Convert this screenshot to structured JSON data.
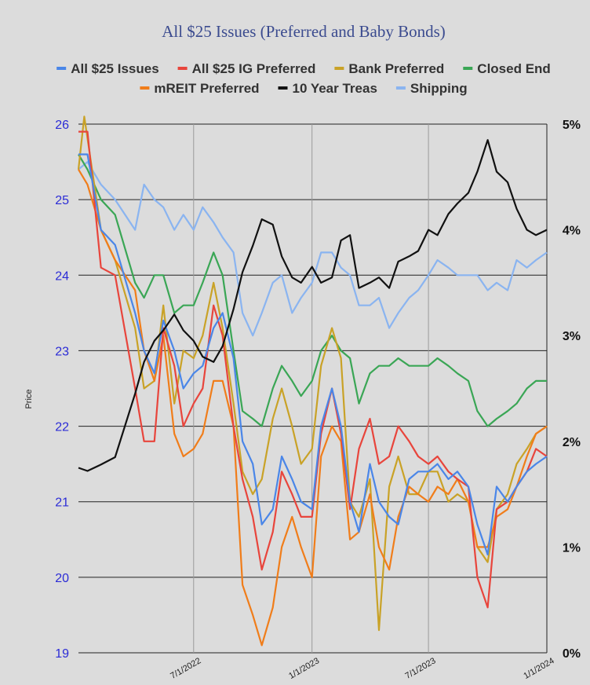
{
  "chart_data": {
    "type": "line",
    "title": "All $25 Issues (Preferred and Baby Bonds)",
    "ylabel": "Price",
    "ylim": [
      19,
      26
    ],
    "y_ticks": [
      "19",
      "20",
      "21",
      "22",
      "23",
      "24",
      "25",
      "26"
    ],
    "y2lim": [
      0,
      5
    ],
    "y2_ticks": [
      "0%",
      "1%",
      "2%",
      "3%",
      "4%",
      "5%"
    ],
    "x_ticks": [
      "7/1/2022",
      "1/1/2023",
      "7/1/2023",
      "1/1/2024"
    ],
    "xlim": [
      "2022-01-03",
      "2024-01-01"
    ],
    "grid": true,
    "legend_position": "top",
    "series": [
      {
        "name": "All $25 Issues",
        "color": "#4a86e8",
        "axis": "left",
        "x": [
          "2022-01-03",
          "2022-01-17",
          "2022-02-07",
          "2022-03-01",
          "2022-04-01",
          "2022-04-15",
          "2022-05-01",
          "2022-05-15",
          "2022-06-01",
          "2022-06-15",
          "2022-07-01",
          "2022-07-15",
          "2022-08-01",
          "2022-08-15",
          "2022-09-01",
          "2022-09-15",
          "2022-10-01",
          "2022-10-15",
          "2022-11-01",
          "2022-11-15",
          "2022-12-01",
          "2022-12-15",
          "2023-01-01",
          "2023-01-15",
          "2023-02-01",
          "2023-02-15",
          "2023-03-01",
          "2023-03-15",
          "2023-04-01",
          "2023-04-15",
          "2023-05-01",
          "2023-05-15",
          "2023-06-01",
          "2023-06-15",
          "2023-07-01",
          "2023-07-15",
          "2023-08-01",
          "2023-08-15",
          "2023-09-01",
          "2023-09-15",
          "2023-10-01",
          "2023-10-15",
          "2023-11-01",
          "2023-11-15",
          "2023-12-01",
          "2023-12-15",
          "2024-01-01"
        ],
        "values": [
          25.6,
          25.6,
          24.6,
          24.4,
          23.5,
          23.0,
          22.7,
          23.4,
          23.0,
          22.5,
          22.7,
          22.8,
          23.3,
          23.5,
          22.9,
          21.8,
          21.5,
          20.7,
          20.9,
          21.6,
          21.3,
          21.0,
          20.9,
          22.0,
          22.5,
          22.0,
          21.0,
          20.6,
          21.5,
          21.0,
          20.8,
          20.7,
          21.3,
          21.4,
          21.4,
          21.5,
          21.3,
          21.4,
          21.2,
          20.7,
          20.3,
          21.2,
          21.0,
          21.2,
          21.4,
          21.5,
          21.6
        ]
      },
      {
        "name": "All $25 IG Preferred",
        "color": "#e8453c",
        "axis": "left",
        "x": [
          "2022-01-03",
          "2022-01-17",
          "2022-02-07",
          "2022-03-01",
          "2022-04-01",
          "2022-04-15",
          "2022-05-01",
          "2022-05-15",
          "2022-06-01",
          "2022-06-15",
          "2022-07-01",
          "2022-07-15",
          "2022-08-01",
          "2022-08-15",
          "2022-09-01",
          "2022-09-15",
          "2022-10-01",
          "2022-10-15",
          "2022-11-01",
          "2022-11-15",
          "2022-12-01",
          "2022-12-15",
          "2023-01-01",
          "2023-01-15",
          "2023-02-01",
          "2023-02-15",
          "2023-03-01",
          "2023-03-15",
          "2023-04-01",
          "2023-04-15",
          "2023-05-01",
          "2023-05-15",
          "2023-06-01",
          "2023-06-15",
          "2023-07-01",
          "2023-07-15",
          "2023-08-01",
          "2023-08-15",
          "2023-09-01",
          "2023-09-15",
          "2023-10-01",
          "2023-10-15",
          "2023-11-01",
          "2023-11-15",
          "2023-12-01",
          "2023-12-15",
          "2024-01-01"
        ],
        "values": [
          25.9,
          25.9,
          24.1,
          24.0,
          22.5,
          21.8,
          21.8,
          23.3,
          22.8,
          22.0,
          22.3,
          22.5,
          23.6,
          23.2,
          22.0,
          21.3,
          20.8,
          20.1,
          20.6,
          21.4,
          21.1,
          20.8,
          20.8,
          21.9,
          22.5,
          21.9,
          20.9,
          21.7,
          22.1,
          21.5,
          21.6,
          22.0,
          21.8,
          21.6,
          21.5,
          21.6,
          21.4,
          21.3,
          21.2,
          20.0,
          19.6,
          20.9,
          21.0,
          21.2,
          21.4,
          21.7,
          21.6
        ]
      },
      {
        "name": "Bank Preferred",
        "color": "#c9a227",
        "axis": "left",
        "x": [
          "2022-01-03",
          "2022-01-12",
          "2022-02-07",
          "2022-03-01",
          "2022-04-01",
          "2022-04-15",
          "2022-05-01",
          "2022-05-15",
          "2022-06-01",
          "2022-06-15",
          "2022-07-01",
          "2022-07-15",
          "2022-08-01",
          "2022-08-15",
          "2022-09-01",
          "2022-09-15",
          "2022-10-01",
          "2022-10-15",
          "2022-11-01",
          "2022-11-15",
          "2022-12-01",
          "2022-12-15",
          "2023-01-01",
          "2023-01-15",
          "2023-02-01",
          "2023-02-15",
          "2023-03-01",
          "2023-03-15",
          "2023-04-01",
          "2023-04-15",
          "2023-05-01",
          "2023-05-15",
          "2023-06-01",
          "2023-06-15",
          "2023-07-01",
          "2023-07-15",
          "2023-08-01",
          "2023-08-15",
          "2023-09-01",
          "2023-09-15",
          "2023-10-01",
          "2023-10-15",
          "2023-11-01",
          "2023-11-15",
          "2023-12-01",
          "2023-12-15",
          "2024-01-01"
        ],
        "values": [
          25.4,
          26.1,
          24.6,
          24.2,
          23.3,
          22.5,
          22.6,
          23.6,
          22.3,
          23.0,
          22.9,
          23.2,
          23.9,
          23.3,
          22.3,
          21.4,
          21.1,
          21.3,
          22.1,
          22.5,
          22.0,
          21.5,
          21.7,
          22.8,
          23.3,
          22.9,
          21.0,
          20.8,
          21.3,
          19.3,
          21.2,
          21.6,
          21.1,
          21.1,
          21.4,
          21.4,
          21.0,
          21.1,
          21.0,
          20.4,
          20.2,
          20.9,
          21.1,
          21.5,
          21.7,
          21.9,
          22.0
        ]
      },
      {
        "name": "Closed End",
        "color": "#3aa655",
        "axis": "left",
        "x": [
          "2022-01-03",
          "2022-01-17",
          "2022-02-07",
          "2022-03-01",
          "2022-04-01",
          "2022-04-15",
          "2022-05-01",
          "2022-05-15",
          "2022-06-01",
          "2022-06-15",
          "2022-07-01",
          "2022-07-15",
          "2022-08-01",
          "2022-08-15",
          "2022-09-01",
          "2022-09-15",
          "2022-10-01",
          "2022-10-15",
          "2022-11-01",
          "2022-11-15",
          "2022-12-01",
          "2022-12-15",
          "2023-01-01",
          "2023-01-15",
          "2023-02-01",
          "2023-02-15",
          "2023-03-01",
          "2023-03-15",
          "2023-04-01",
          "2023-04-15",
          "2023-05-01",
          "2023-05-15",
          "2023-06-01",
          "2023-06-15",
          "2023-07-01",
          "2023-07-15",
          "2023-08-01",
          "2023-08-15",
          "2023-09-01",
          "2023-09-15",
          "2023-10-01",
          "2023-10-15",
          "2023-11-01",
          "2023-11-15",
          "2023-12-01",
          "2023-12-15",
          "2024-01-01"
        ],
        "values": [
          25.6,
          25.4,
          25.0,
          24.8,
          23.9,
          23.7,
          24.0,
          24.0,
          23.5,
          23.6,
          23.6,
          23.9,
          24.3,
          24.0,
          23.0,
          22.2,
          22.1,
          22.0,
          22.5,
          22.8,
          22.6,
          22.4,
          22.6,
          23.0,
          23.2,
          23.0,
          22.9,
          22.3,
          22.7,
          22.8,
          22.8,
          22.9,
          22.8,
          22.8,
          22.8,
          22.9,
          22.8,
          22.7,
          22.6,
          22.2,
          22.0,
          22.1,
          22.2,
          22.3,
          22.5,
          22.6,
          22.6
        ]
      },
      {
        "name": "mREIT Preferred",
        "color": "#f07d1a",
        "axis": "left",
        "x": [
          "2022-01-03",
          "2022-01-17",
          "2022-02-07",
          "2022-03-01",
          "2022-04-01",
          "2022-04-15",
          "2022-05-01",
          "2022-05-15",
          "2022-06-01",
          "2022-06-15",
          "2022-07-01",
          "2022-07-15",
          "2022-08-01",
          "2022-08-15",
          "2022-09-01",
          "2022-09-15",
          "2022-10-01",
          "2022-10-15",
          "2022-11-01",
          "2022-11-15",
          "2022-12-01",
          "2022-12-15",
          "2023-01-01",
          "2023-01-15",
          "2023-02-01",
          "2023-02-15",
          "2023-03-01",
          "2023-03-15",
          "2023-04-01",
          "2023-04-15",
          "2023-05-01",
          "2023-05-15",
          "2023-06-01",
          "2023-06-15",
          "2023-07-01",
          "2023-07-15",
          "2023-08-01",
          "2023-08-15",
          "2023-09-01",
          "2023-09-15",
          "2023-10-01",
          "2023-10-15",
          "2023-11-01",
          "2023-11-15",
          "2023-12-01",
          "2023-12-15",
          "2024-01-01"
        ],
        "values": [
          25.4,
          25.2,
          24.6,
          24.2,
          23.8,
          23.0,
          22.6,
          23.2,
          21.9,
          21.6,
          21.7,
          21.9,
          22.6,
          22.6,
          22.0,
          19.9,
          19.5,
          19.1,
          19.6,
          20.4,
          20.8,
          20.4,
          20.0,
          21.6,
          22.0,
          21.8,
          20.5,
          20.6,
          21.1,
          20.4,
          20.1,
          20.8,
          21.2,
          21.1,
          21.0,
          21.2,
          21.1,
          21.3,
          21.0,
          20.4,
          20.4,
          20.8,
          20.9,
          21.2,
          21.6,
          21.9,
          22.0
        ]
      },
      {
        "name": "10 Year Treas",
        "color": "#111111",
        "axis": "right",
        "x": [
          "2022-01-03",
          "2022-01-17",
          "2022-02-07",
          "2022-03-01",
          "2022-04-01",
          "2022-04-15",
          "2022-05-01",
          "2022-05-15",
          "2022-06-01",
          "2022-06-15",
          "2022-07-01",
          "2022-07-15",
          "2022-08-01",
          "2022-08-15",
          "2022-09-01",
          "2022-09-15",
          "2022-10-01",
          "2022-10-15",
          "2022-11-01",
          "2022-11-15",
          "2022-12-01",
          "2022-12-15",
          "2023-01-01",
          "2023-01-15",
          "2023-02-01",
          "2023-02-15",
          "2023-03-01",
          "2023-03-15",
          "2023-04-01",
          "2023-04-15",
          "2023-05-01",
          "2023-05-15",
          "2023-06-01",
          "2023-06-15",
          "2023-07-01",
          "2023-07-15",
          "2023-08-01",
          "2023-08-15",
          "2023-09-01",
          "2023-09-15",
          "2023-10-01",
          "2023-10-15",
          "2023-11-01",
          "2023-11-15",
          "2023-12-01",
          "2023-12-15",
          "2024-01-01"
        ],
        "values": [
          1.75,
          1.72,
          1.78,
          1.85,
          2.45,
          2.75,
          2.95,
          3.05,
          3.2,
          3.05,
          2.95,
          2.8,
          2.75,
          2.9,
          3.25,
          3.6,
          3.85,
          4.1,
          4.05,
          3.75,
          3.55,
          3.5,
          3.65,
          3.5,
          3.55,
          3.9,
          3.95,
          3.45,
          3.5,
          3.55,
          3.45,
          3.7,
          3.75,
          3.8,
          4.0,
          3.95,
          4.15,
          4.25,
          4.35,
          4.55,
          4.85,
          4.55,
          4.45,
          4.2,
          4.0,
          3.95,
          4.0
        ]
      },
      {
        "name": "Shipping",
        "color": "#8ab4f0",
        "axis": "left",
        "x": [
          "2022-01-03",
          "2022-01-17",
          "2022-02-07",
          "2022-03-01",
          "2022-04-01",
          "2022-04-15",
          "2022-05-01",
          "2022-05-15",
          "2022-06-01",
          "2022-06-15",
          "2022-07-01",
          "2022-07-15",
          "2022-08-01",
          "2022-08-15",
          "2022-09-01",
          "2022-09-15",
          "2022-10-01",
          "2022-10-15",
          "2022-11-01",
          "2022-11-15",
          "2022-12-01",
          "2022-12-15",
          "2023-01-01",
          "2023-01-15",
          "2023-02-01",
          "2023-02-15",
          "2023-03-01",
          "2023-03-15",
          "2023-04-01",
          "2023-04-15",
          "2023-05-01",
          "2023-05-15",
          "2023-06-01",
          "2023-06-15",
          "2023-07-01",
          "2023-07-15",
          "2023-08-01",
          "2023-08-15",
          "2023-09-01",
          "2023-09-15",
          "2023-10-01",
          "2023-10-15",
          "2023-11-01",
          "2023-11-15",
          "2023-12-01",
          "2023-12-15",
          "2024-01-01"
        ],
        "values": [
          25.4,
          25.5,
          25.2,
          25.0,
          24.6,
          25.2,
          25.0,
          24.9,
          24.6,
          24.8,
          24.6,
          24.9,
          24.7,
          24.5,
          24.3,
          23.5,
          23.2,
          23.5,
          23.9,
          24.0,
          23.5,
          23.7,
          23.9,
          24.3,
          24.3,
          24.1,
          24.0,
          23.6,
          23.6,
          23.7,
          23.3,
          23.5,
          23.7,
          23.8,
          24.0,
          24.2,
          24.1,
          24.0,
          24.0,
          24.0,
          23.8,
          23.9,
          23.8,
          24.2,
          24.1,
          24.2,
          24.3
        ]
      }
    ]
  }
}
